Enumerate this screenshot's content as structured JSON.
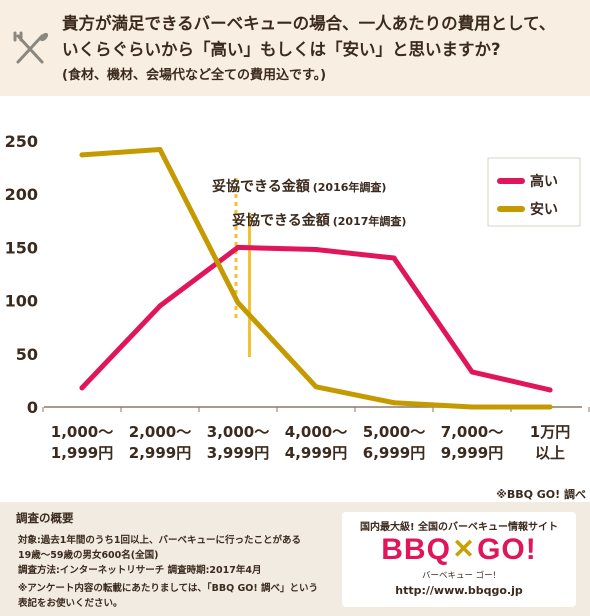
{
  "header": {
    "question_line1": "貴方が満足できるバーベキューの場合、一人あたりの費用として、",
    "question_line2": "いくらぐらいから「高い」もしくは「安い」と思いますか?",
    "question_note": "(食材、機材、会場代など全ての費用込です。)",
    "icon": "fork-and-knife-icon"
  },
  "chart_data": {
    "type": "line",
    "categories": [
      [
        "1,000〜",
        "1,999円"
      ],
      [
        "2,000〜",
        "2,999円"
      ],
      [
        "3,000〜",
        "3,999円"
      ],
      [
        "4,000〜",
        "4,999円"
      ],
      [
        "5,000〜",
        "6,999円"
      ],
      [
        "7,000〜",
        "9,999円"
      ],
      [
        "1万円",
        "以上"
      ]
    ],
    "series": [
      {
        "name": "高い",
        "color": "#e0155a",
        "values": [
          18,
          95,
          150,
          148,
          140,
          33,
          16
        ]
      },
      {
        "name": "安い",
        "color": "#c49a00",
        "values": [
          237,
          242,
          98,
          19,
          4,
          0,
          0
        ]
      }
    ],
    "ylim": [
      0,
      250
    ],
    "yticks": [
      0,
      50,
      100,
      150,
      200,
      250
    ],
    "grid": false,
    "legend": "top-right",
    "annotations": [
      {
        "label": "妥協できる金額",
        "sub": "(2016年調査)",
        "x": 2.0,
        "style": "dotted",
        "color": "#f2c230"
      },
      {
        "label": "妥協できる金額",
        "sub": "(2017年調査)",
        "x": 2.25,
        "style": "solid",
        "color": "#f2c230"
      }
    ]
  },
  "credit": "※BBQ GO! 調べ",
  "footer": {
    "title": "調査の概要",
    "line1": "対象:過去1年間のうち1回以上、バーベキューに行ったことがある",
    "line2": "19歳〜59歳の男女600名(全国)",
    "line3": "調査方法:インターネットリサーチ 調査時期:2017年4月",
    "line4": "※アンケート内容の転載にあたりましては、「BBQ GO! 調べ」という",
    "line5": "表記をお使いください。"
  },
  "logo": {
    "tagline": "国内最大級! 全国のバーベキュー情報サイト",
    "mark_left": "BBQ",
    "mark_x": "✕",
    "mark_right": "GO!",
    "kana": "バーベキュー ゴー!",
    "url": "http://www.bbqgo.jp"
  }
}
